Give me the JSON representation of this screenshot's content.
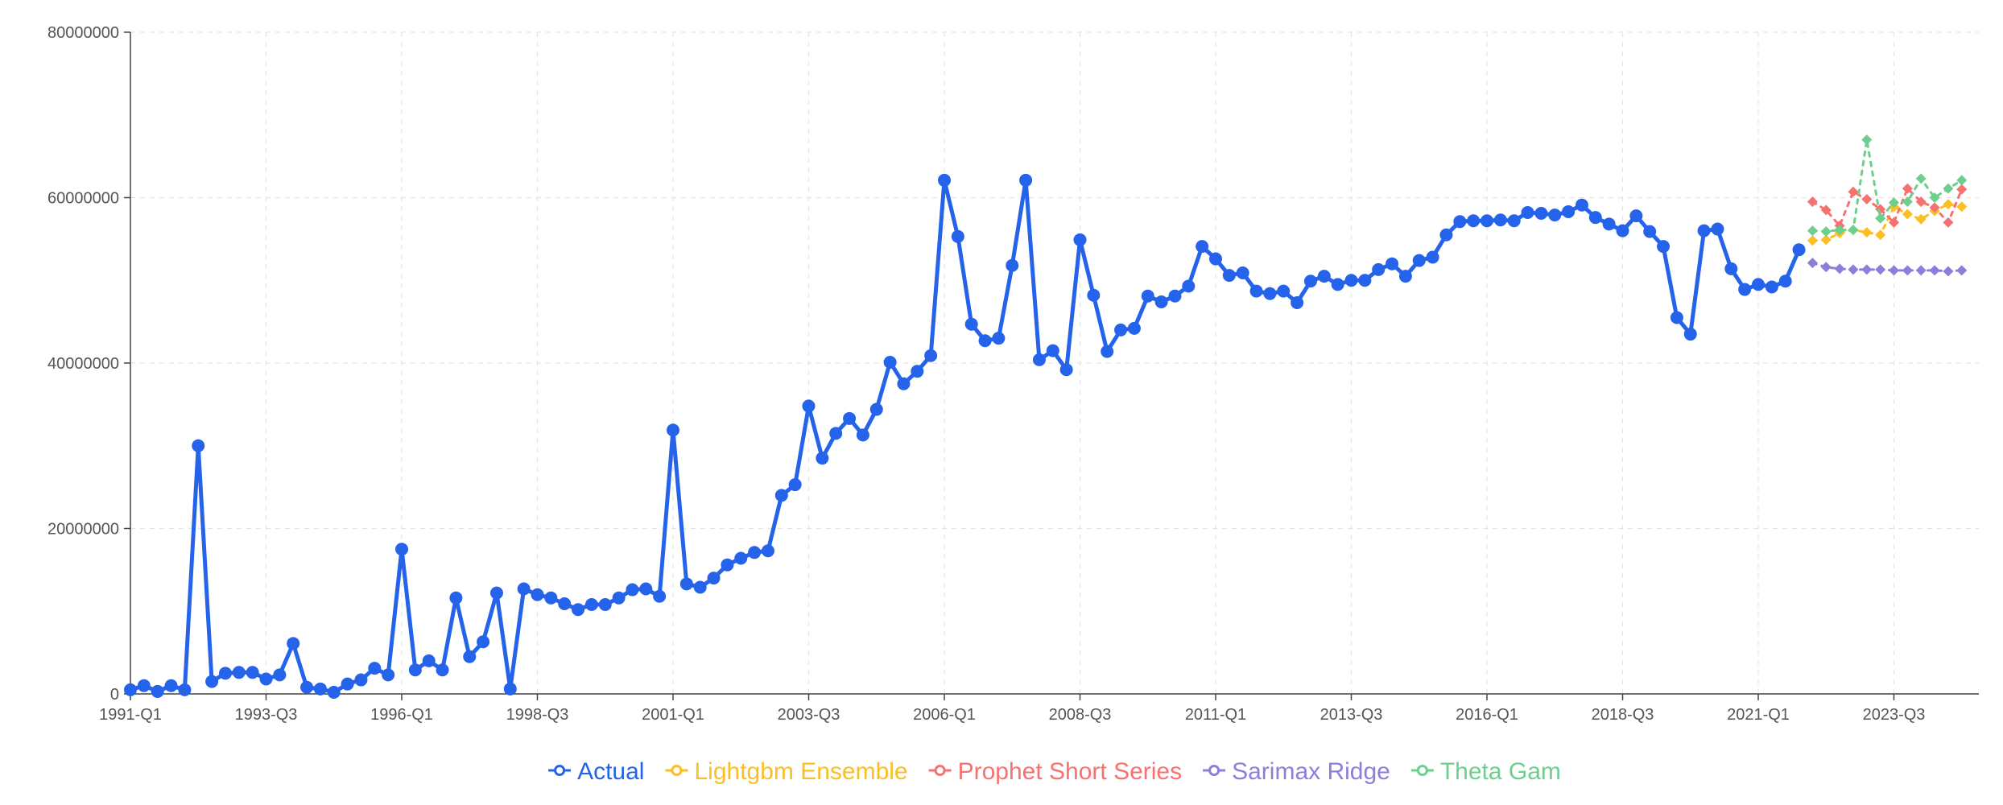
{
  "chart_data": {
    "type": "line",
    "title": "",
    "xlabel": "",
    "ylabel": "",
    "ylim": [
      0,
      80000000
    ],
    "yticks": [
      0,
      20000000,
      40000000,
      60000000,
      80000000
    ],
    "ytick_labels": [
      "0",
      "20000000",
      "40000000",
      "60000000",
      "80000000"
    ],
    "xtick_labels": [
      "1991-Q1",
      "1993-Q3",
      "1996-Q1",
      "1998-Q3",
      "2001-Q1",
      "2003-Q3",
      "2006-Q1",
      "2008-Q3",
      "2011-Q1",
      "2013-Q3",
      "2016-Q1",
      "2018-Q3",
      "2021-Q1",
      "2023-Q3"
    ],
    "grid": true,
    "legend_position": "bottom",
    "series": [
      {
        "name": "Actual",
        "color": "#2563eb",
        "line_style": "solid",
        "start": "1991-Q1",
        "values": [
          500000,
          1000000,
          300000,
          1000000,
          500000,
          30000000,
          1500000,
          2500000,
          2600000,
          2600000,
          1800000,
          2300000,
          6100000,
          800000,
          600000,
          200000,
          1200000,
          1700000,
          3100000,
          2300000,
          17500000,
          2900000,
          4000000,
          2900000,
          11600000,
          4500000,
          6300000,
          12200000,
          600000,
          12700000,
          12000000,
          11600000,
          10900000,
          10200000,
          10800000,
          10800000,
          11600000,
          12600000,
          12700000,
          11800000,
          31900000,
          13300000,
          12900000,
          14000000,
          15600000,
          16400000,
          17100000,
          17300000,
          24000000,
          25300000,
          34800000,
          28500000,
          31500000,
          33300000,
          31300000,
          34400000,
          40100000,
          37500000,
          39000000,
          40900000,
          62100000,
          55300000,
          44700000,
          42700000,
          43000000,
          51800000,
          62100000,
          40400000,
          41500000,
          39200000,
          54900000,
          48200000,
          41400000,
          44000000,
          44200000,
          48100000,
          47400000,
          48100000,
          49300000,
          54100000,
          52600000,
          50600000,
          50900000,
          48700000,
          48400000,
          48700000,
          47300000,
          49900000,
          50500000,
          49500000,
          50000000,
          50000000,
          51300000,
          52000000,
          50500000,
          52400000,
          52800000,
          55500000,
          57100000,
          57200000,
          57200000,
          57300000,
          57200000,
          58200000,
          58100000,
          57900000,
          58300000,
          59100000,
          57600000,
          56800000,
          56000000,
          57800000,
          55900000,
          54100000,
          45500000,
          43500000,
          56000000,
          56200000,
          51400000,
          48900000,
          49500000,
          49200000,
          49900000,
          53700000
        ]
      },
      {
        "name": "Lightgbm Ensemble",
        "color": "#fbbf24",
        "line_style": "dashed",
        "start": "2022-Q1",
        "values": [
          54800000,
          54900000,
          55700000,
          56100000,
          55800000,
          55500000,
          58900000,
          58000000,
          57400000,
          58400000,
          59200000,
          58900000
        ]
      },
      {
        "name": "Prophet Short Series",
        "color": "#f87171",
        "line_style": "dashed",
        "start": "2022-Q1",
        "values": [
          59500000,
          58500000,
          56600000,
          60700000,
          59800000,
          58600000,
          57000000,
          61100000,
          59500000,
          58800000,
          57000000,
          61000000
        ]
      },
      {
        "name": "Sarimax Ridge",
        "color": "#8b7fdb",
        "line_style": "dashed",
        "start": "2022-Q1",
        "values": [
          52100000,
          51600000,
          51400000,
          51300000,
          51300000,
          51300000,
          51200000,
          51200000,
          51200000,
          51200000,
          51100000,
          51200000
        ]
      },
      {
        "name": "Theta Gam",
        "color": "#6dcf8e",
        "line_style": "dashed",
        "start": "2022-Q1",
        "values": [
          56000000,
          55900000,
          56100000,
          56100000,
          67000000,
          57500000,
          59400000,
          59500000,
          62300000,
          60000000,
          61100000,
          62100000
        ]
      }
    ]
  }
}
